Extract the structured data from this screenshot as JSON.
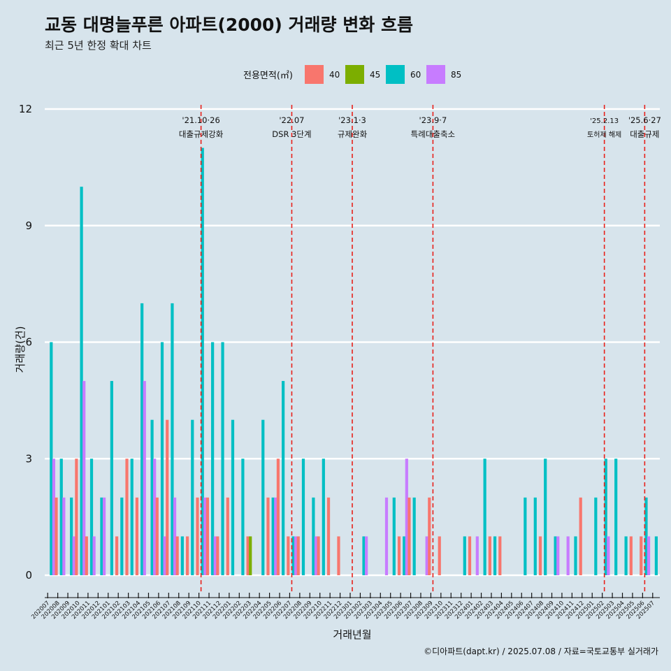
{
  "chart_data": {
    "type": "bar",
    "title": "교동 대명늘푸른 아파트(2000) 거래량 변화 흐름",
    "subtitle": "최근 5년 한정 확대 차트",
    "xlabel": "거래년월",
    "ylabel": "거래량(건)",
    "ylim": [
      0,
      12
    ],
    "yticks": [
      "0",
      "3",
      "6",
      "9",
      "12"
    ],
    "grid": true,
    "legend": {
      "title": "전용면적(㎡)",
      "position": "top",
      "entries": [
        {
          "key": "40",
          "label": "40",
          "color": "#f8766d"
        },
        {
          "key": "45",
          "label": "45",
          "color": "#7cae00"
        },
        {
          "key": "60",
          "label": "60",
          "color": "#00bfc4"
        },
        {
          "key": "85",
          "label": "85",
          "color": "#c77cff"
        }
      ]
    },
    "categories": [
      "202007",
      "202008",
      "202009",
      "202010",
      "202011",
      "202012",
      "202101",
      "202102",
      "202103",
      "202104",
      "202105",
      "202106",
      "202107",
      "202108",
      "202109",
      "202110",
      "202111",
      "202112",
      "202201",
      "202202",
      "202203",
      "202204",
      "202205",
      "202206",
      "202207",
      "202208",
      "202209",
      "202210",
      "202211",
      "202212",
      "202301",
      "202302",
      "202303",
      "202304",
      "202305",
      "202306",
      "202307",
      "202308",
      "202309",
      "202310",
      "202311",
      "202312",
      "202401",
      "202402",
      "202403",
      "202404",
      "202405",
      "202406",
      "202407",
      "202408",
      "202409",
      "202410",
      "202411",
      "202412",
      "202501",
      "202502",
      "202503",
      "202504",
      "202505",
      "202506",
      "202507"
    ],
    "data": [
      {
        "month": "202007",
        "v40": 0,
        "v45": 0,
        "v60": 6,
        "v85": 3
      },
      {
        "month": "202008",
        "v40": 2,
        "v45": 0,
        "v60": 3,
        "v85": 2
      },
      {
        "month": "202009",
        "v40": 0,
        "v45": 0,
        "v60": 2,
        "v85": 1
      },
      {
        "month": "202010",
        "v40": 3,
        "v45": 0,
        "v60": 10,
        "v85": 5
      },
      {
        "month": "202011",
        "v40": 1,
        "v45": 0,
        "v60": 3,
        "v85": 1
      },
      {
        "month": "202012",
        "v40": 0,
        "v45": 0,
        "v60": 2,
        "v85": 2
      },
      {
        "month": "202101",
        "v40": 0,
        "v45": 0,
        "v60": 5,
        "v85": 0
      },
      {
        "month": "202102",
        "v40": 1,
        "v45": 0,
        "v60": 2,
        "v85": 0
      },
      {
        "month": "202103",
        "v40": 3,
        "v45": 0,
        "v60": 3,
        "v85": 0
      },
      {
        "month": "202104",
        "v40": 2,
        "v45": 0,
        "v60": 7,
        "v85": 5
      },
      {
        "month": "202105",
        "v40": 0,
        "v45": 0,
        "v60": 4,
        "v85": 3
      },
      {
        "month": "202106",
        "v40": 2,
        "v45": 0,
        "v60": 6,
        "v85": 1
      },
      {
        "month": "202107",
        "v40": 4,
        "v45": 0,
        "v60": 7,
        "v85": 2
      },
      {
        "month": "202108",
        "v40": 1,
        "v45": 0,
        "v60": 1,
        "v85": 0
      },
      {
        "month": "202109",
        "v40": 1,
        "v45": 0,
        "v60": 4,
        "v85": 0
      },
      {
        "month": "202110",
        "v40": 2,
        "v45": 0,
        "v60": 11,
        "v85": 2
      },
      {
        "month": "202111",
        "v40": 2,
        "v45": 0,
        "v60": 6,
        "v85": 1
      },
      {
        "month": "202112",
        "v40": 1,
        "v45": 0,
        "v60": 6,
        "v85": 0
      },
      {
        "month": "202201",
        "v40": 2,
        "v45": 0,
        "v60": 4,
        "v85": 0
      },
      {
        "month": "202202",
        "v40": 0,
        "v45": 0,
        "v60": 3,
        "v85": 0
      },
      {
        "month": "202203",
        "v40": 1,
        "v45": 1,
        "v60": 0,
        "v85": 0
      },
      {
        "month": "202204",
        "v40": 0,
        "v45": 0,
        "v60": 4,
        "v85": 0
      },
      {
        "month": "202205",
        "v40": 2,
        "v45": 0,
        "v60": 2,
        "v85": 2
      },
      {
        "month": "202206",
        "v40": 3,
        "v45": 0,
        "v60": 5,
        "v85": 0
      },
      {
        "month": "202207",
        "v40": 1,
        "v45": 0,
        "v60": 1,
        "v85": 1
      },
      {
        "month": "202208",
        "v40": 1,
        "v45": 0,
        "v60": 3,
        "v85": 0
      },
      {
        "month": "202209",
        "v40": 0,
        "v45": 0,
        "v60": 2,
        "v85": 1
      },
      {
        "month": "202210",
        "v40": 1,
        "v45": 0,
        "v60": 3,
        "v85": 0
      },
      {
        "month": "202211",
        "v40": 2,
        "v45": 0,
        "v60": 0,
        "v85": 0
      },
      {
        "month": "202212",
        "v40": 1,
        "v45": 0,
        "v60": 0,
        "v85": 0
      },
      {
        "month": "202301",
        "v40": 0,
        "v45": 0,
        "v60": 0,
        "v85": 0
      },
      {
        "month": "202302",
        "v40": 0,
        "v45": 0,
        "v60": 1,
        "v85": 1
      },
      {
        "month": "202303",
        "v40": 0,
        "v45": 0,
        "v60": 0,
        "v85": 0
      },
      {
        "month": "202304",
        "v40": 0,
        "v45": 0,
        "v60": 0,
        "v85": 2
      },
      {
        "month": "202305",
        "v40": 0,
        "v45": 0,
        "v60": 2,
        "v85": 0
      },
      {
        "month": "202306",
        "v40": 1,
        "v45": 0,
        "v60": 1,
        "v85": 3
      },
      {
        "month": "202307",
        "v40": 2,
        "v45": 0,
        "v60": 2,
        "v85": 0
      },
      {
        "month": "202308",
        "v40": 0,
        "v45": 0,
        "v60": 0,
        "v85": 1
      },
      {
        "month": "202309",
        "v40": 2,
        "v45": 0,
        "v60": 0,
        "v85": 0
      },
      {
        "month": "202310",
        "v40": 1,
        "v45": 0,
        "v60": 0,
        "v85": 0
      },
      {
        "month": "202311",
        "v40": 0,
        "v45": 0,
        "v60": 0,
        "v85": 0
      },
      {
        "month": "202312",
        "v40": 0,
        "v45": 0,
        "v60": 1,
        "v85": 0
      },
      {
        "month": "202401",
        "v40": 1,
        "v45": 0,
        "v60": 0,
        "v85": 1
      },
      {
        "month": "202402",
        "v40": 0,
        "v45": 0,
        "v60": 3,
        "v85": 0
      },
      {
        "month": "202403",
        "v40": 1,
        "v45": 0,
        "v60": 1,
        "v85": 0
      },
      {
        "month": "202404",
        "v40": 1,
        "v45": 0,
        "v60": 0,
        "v85": 0
      },
      {
        "month": "202405",
        "v40": 0,
        "v45": 0,
        "v60": 0,
        "v85": 0
      },
      {
        "month": "202406",
        "v40": 0,
        "v45": 0,
        "v60": 2,
        "v85": 0
      },
      {
        "month": "202407",
        "v40": 0,
        "v45": 0,
        "v60": 2,
        "v85": 0
      },
      {
        "month": "202408",
        "v40": 1,
        "v45": 0,
        "v60": 3,
        "v85": 0
      },
      {
        "month": "202409",
        "v40": 0,
        "v45": 0,
        "v60": 1,
        "v85": 1
      },
      {
        "month": "202410",
        "v40": 0,
        "v45": 0,
        "v60": 0,
        "v85": 1
      },
      {
        "month": "202411",
        "v40": 0,
        "v45": 0,
        "v60": 1,
        "v85": 0
      },
      {
        "month": "202412",
        "v40": 2,
        "v45": 0,
        "v60": 0,
        "v85": 0
      },
      {
        "month": "202501",
        "v40": 0,
        "v45": 0,
        "v60": 2,
        "v85": 0
      },
      {
        "month": "202502",
        "v40": 0,
        "v45": 0,
        "v60": 3,
        "v85": 1
      },
      {
        "month": "202503",
        "v40": 0,
        "v45": 0,
        "v60": 3,
        "v85": 0
      },
      {
        "month": "202504",
        "v40": 0,
        "v45": 0,
        "v60": 1,
        "v85": 0
      },
      {
        "month": "202505",
        "v40": 1,
        "v45": 0,
        "v60": 0,
        "v85": 0
      },
      {
        "month": "202506",
        "v40": 1,
        "v45": 0,
        "v60": 2,
        "v85": 1
      },
      {
        "month": "202507",
        "v40": 0,
        "v45": 0,
        "v60": 1,
        "v85": 0
      }
    ],
    "annotations": [
      {
        "month": "202110",
        "date": "'21.10·26",
        "label": "대출규제강화"
      },
      {
        "month": "202207",
        "date": "'22.07",
        "label": "DSR 3단계"
      },
      {
        "month": "202301",
        "date": "'23.1·3",
        "label": "규제완화"
      },
      {
        "month": "202309",
        "date": "'23.9·7",
        "label": "특례대출축소"
      },
      {
        "month": "202502",
        "date": "'25.2.13",
        "label": "토허제 해제",
        "small": true
      },
      {
        "month": "202506",
        "date": "'25.6·27",
        "label": "대출규제"
      }
    ],
    "annotation_line_color": "#e8211b"
  },
  "caption": "©디아파트(dapt.kr) / 2025.07.08 / 자료=국토교통부 실거래가"
}
